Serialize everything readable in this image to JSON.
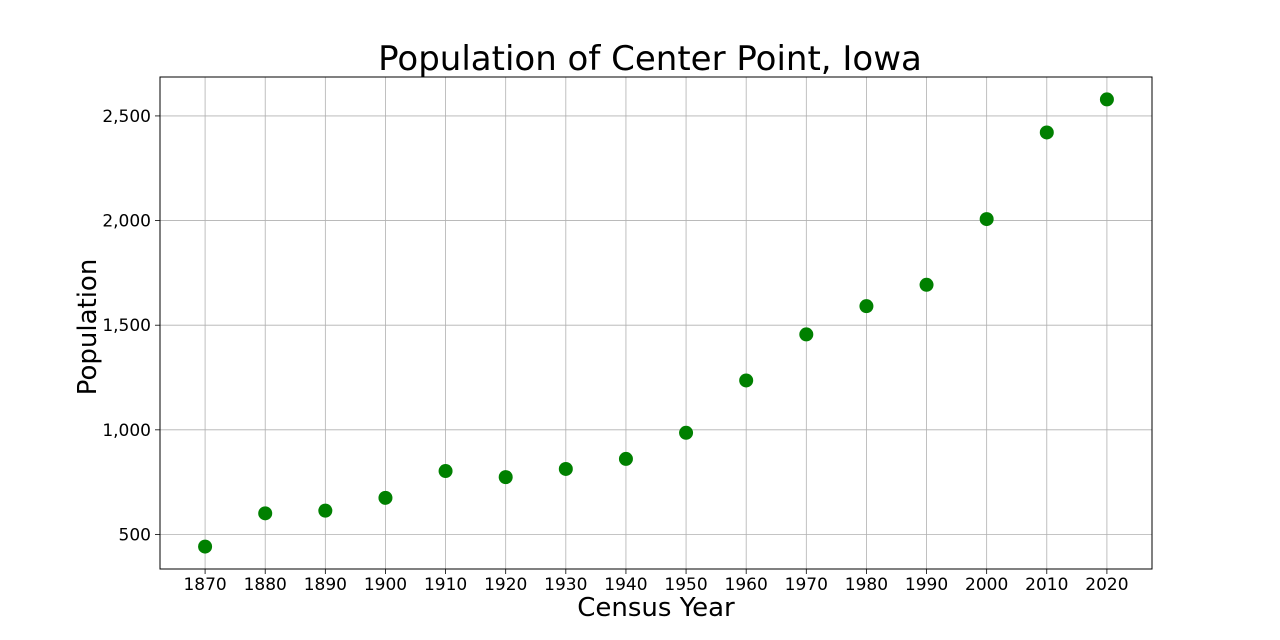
{
  "chart_data": {
    "type": "scatter",
    "title": "Population of Center Point, Iowa",
    "xlabel": "Census Year",
    "ylabel": "Population",
    "x": [
      1870,
      1880,
      1890,
      1900,
      1910,
      1920,
      1930,
      1940,
      1950,
      1960,
      1970,
      1980,
      1990,
      2000,
      2010,
      2020
    ],
    "y": [
      442,
      601,
      614,
      675,
      803,
      774,
      813,
      861,
      986,
      1236,
      1456,
      1591,
      1693,
      2007,
      2421,
      2579
    ],
    "xticks": [
      1870,
      1880,
      1890,
      1900,
      1910,
      1920,
      1930,
      1940,
      1950,
      1960,
      1970,
      1980,
      1990,
      2000,
      2010,
      2020
    ],
    "xtick_labels": [
      "1870",
      "1880",
      "1890",
      "1900",
      "1910",
      "1920",
      "1930",
      "1940",
      "1950",
      "1960",
      "1970",
      "1980",
      "1990",
      "2000",
      "2010",
      "2020"
    ],
    "yticks": [
      500,
      1000,
      1500,
      2000,
      2500
    ],
    "ytick_labels": [
      "500",
      "1,000",
      "1,500",
      "2,000",
      "2,500"
    ],
    "xlim": [
      1862.5,
      2027.5
    ],
    "ylim": [
      335,
      2686
    ],
    "grid": true,
    "marker_color": "#008000"
  }
}
